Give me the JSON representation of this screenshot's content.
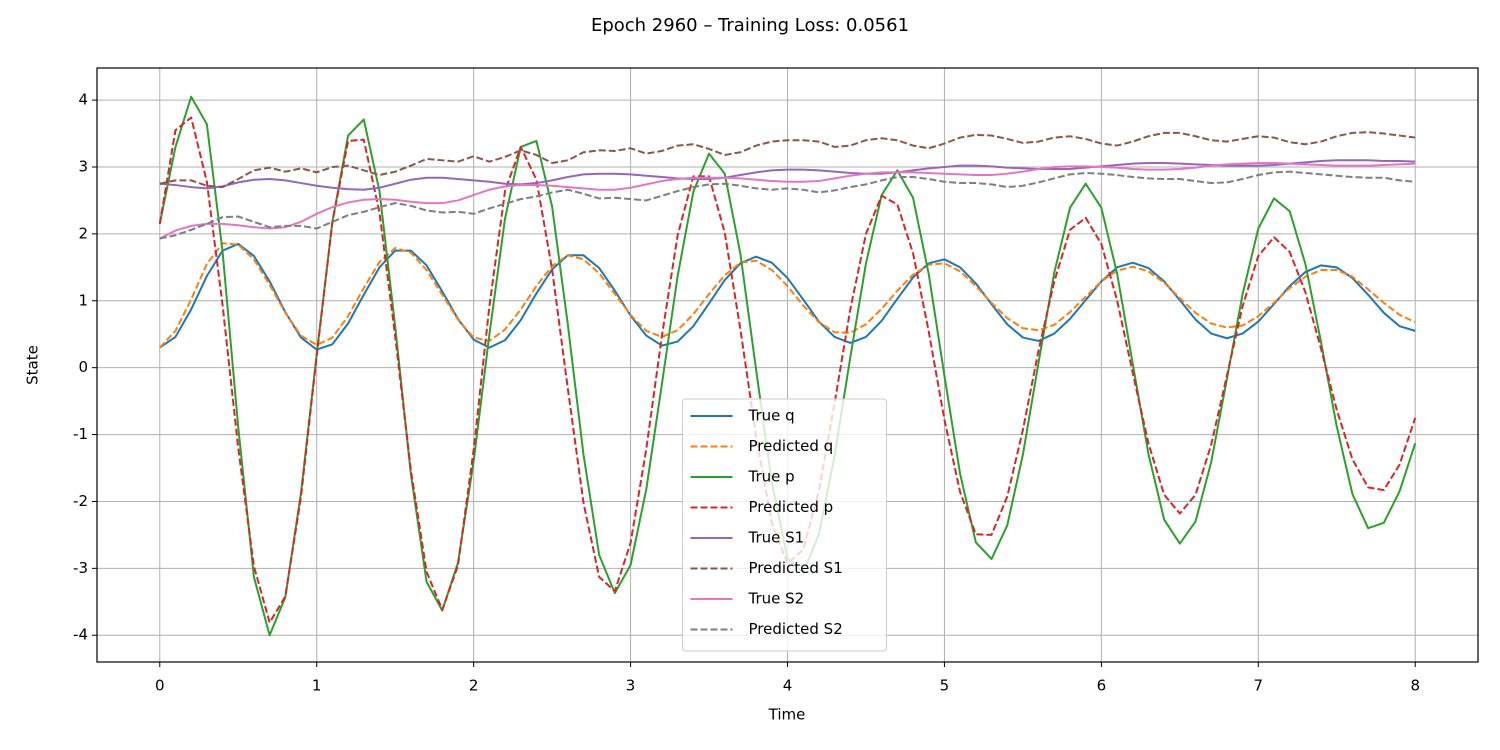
{
  "chart_data": {
    "type": "line",
    "title": "Epoch 2960 – Training Loss: 0.0561",
    "xlabel": "Time",
    "ylabel": "State",
    "xlim": [
      -0.4,
      8.4
    ],
    "ylim": [
      -4.4,
      4.48
    ],
    "xticks": [
      0,
      1,
      2,
      3,
      4,
      5,
      6,
      7,
      8
    ],
    "yticks": [
      -4,
      -3,
      -2,
      -1,
      0,
      1,
      2,
      3,
      4
    ],
    "grid": true,
    "legend_loc": "lower center",
    "x": [
      0,
      0.1,
      0.2,
      0.3,
      0.4,
      0.5,
      0.6,
      0.7,
      0.8,
      0.9,
      1,
      1.1,
      1.2,
      1.3,
      1.4,
      1.5,
      1.6,
      1.7,
      1.8,
      1.9,
      2,
      2.1,
      2.2,
      2.3,
      2.4,
      2.5,
      2.6,
      2.7,
      2.8,
      2.9,
      3,
      3.1,
      3.2,
      3.3,
      3.4,
      3.5,
      3.6,
      3.7,
      3.8,
      3.9,
      4,
      4.1,
      4.2,
      4.3,
      4.4,
      4.5,
      4.6,
      4.7,
      4.8,
      4.9,
      5,
      5.1,
      5.2,
      5.3,
      5.4,
      5.5,
      5.6,
      5.7,
      5.8,
      5.9,
      6,
      6.1,
      6.2,
      6.3,
      6.4,
      6.5,
      6.6,
      6.7,
      6.8,
      6.9,
      7,
      7.1,
      7.2,
      7.3,
      7.4,
      7.5,
      7.6,
      7.7,
      7.8,
      7.9,
      8
    ],
    "series": [
      {
        "name": "True q",
        "color": "#1f77b4",
        "linestyle": "solid",
        "values": [
          0.3,
          0.46,
          0.87,
          1.37,
          1.75,
          1.85,
          1.67,
          1.29,
          0.83,
          0.45,
          0.27,
          0.35,
          0.66,
          1.09,
          1.5,
          1.75,
          1.75,
          1.53,
          1.14,
          0.73,
          0.42,
          0.3,
          0.41,
          0.71,
          1.11,
          1.47,
          1.68,
          1.68,
          1.49,
          1.15,
          0.78,
          0.48,
          0.33,
          0.39,
          0.62,
          0.96,
          1.31,
          1.56,
          1.66,
          1.57,
          1.34,
          1.02,
          0.69,
          0.46,
          0.37,
          0.46,
          0.7,
          1.03,
          1.35,
          1.56,
          1.62,
          1.5,
          1.26,
          0.95,
          0.65,
          0.45,
          0.4,
          0.51,
          0.73,
          1.01,
          1.29,
          1.5,
          1.57,
          1.49,
          1.29,
          1.01,
          0.72,
          0.51,
          0.44,
          0.51,
          0.69,
          0.95,
          1.22,
          1.43,
          1.53,
          1.5,
          1.34,
          1.09,
          0.82,
          0.62,
          0.55
        ]
      },
      {
        "name": "Predicted q",
        "color": "#ff7f0e",
        "linestyle": "dashed",
        "values": [
          0.3,
          0.55,
          1.02,
          1.55,
          1.86,
          1.84,
          1.62,
          1.24,
          0.82,
          0.48,
          0.34,
          0.45,
          0.77,
          1.19,
          1.58,
          1.79,
          1.72,
          1.46,
          1.09,
          0.72,
          0.45,
          0.4,
          0.57,
          0.87,
          1.22,
          1.52,
          1.68,
          1.62,
          1.41,
          1.1,
          0.79,
          0.55,
          0.46,
          0.56,
          0.8,
          1.1,
          1.38,
          1.57,
          1.6,
          1.46,
          1.22,
          0.93,
          0.68,
          0.53,
          0.52,
          0.65,
          0.88,
          1.15,
          1.39,
          1.54,
          1.56,
          1.44,
          1.22,
          0.97,
          0.74,
          0.59,
          0.56,
          0.64,
          0.83,
          1.06,
          1.29,
          1.45,
          1.51,
          1.44,
          1.27,
          1.04,
          0.82,
          0.66,
          0.6,
          0.63,
          0.77,
          0.97,
          1.19,
          1.36,
          1.46,
          1.46,
          1.36,
          1.17,
          0.97,
          0.79,
          0.68
        ]
      },
      {
        "name": "True p",
        "color": "#2ca02c",
        "linestyle": "solid",
        "values": [
          2.15,
          3.3,
          4.05,
          3.64,
          1.74,
          -0.89,
          -3.13,
          -4.0,
          -3.43,
          -1.87,
          0.2,
          2.18,
          3.47,
          3.71,
          2.64,
          0.62,
          -1.59,
          -3.2,
          -3.63,
          -2.92,
          -1.4,
          0.49,
          2.23,
          3.3,
          3.39,
          2.41,
          0.65,
          -1.3,
          -2.8,
          -3.37,
          -2.95,
          -1.82,
          -0.24,
          1.37,
          2.63,
          3.2,
          2.9,
          1.7,
          -0.03,
          -1.72,
          -2.85,
          -3.07,
          -2.49,
          -1.32,
          0.15,
          1.56,
          2.58,
          2.95,
          2.54,
          1.4,
          -0.12,
          -1.59,
          -2.61,
          -2.86,
          -2.36,
          -1.3,
          0.08,
          1.42,
          2.39,
          2.75,
          2.39,
          1.41,
          0.06,
          -1.29,
          -2.27,
          -2.63,
          -2.3,
          -1.41,
          -0.17,
          1.1,
          2.08,
          2.53,
          2.34,
          1.55,
          0.38,
          -0.88,
          -1.89,
          -2.4,
          -2.32,
          -1.85,
          -1.13
        ]
      },
      {
        "name": "Predicted p",
        "color": "#d62728",
        "linestyle": "dashed",
        "values": [
          2.15,
          3.55,
          3.74,
          2.78,
          0.94,
          -1.2,
          -2.97,
          -3.81,
          -3.42,
          -1.93,
          0.18,
          2.18,
          3.39,
          3.41,
          2.32,
          0.47,
          -1.53,
          -3.05,
          -3.62,
          -2.96,
          -1.23,
          0.91,
          2.64,
          3.3,
          2.81,
          1.47,
          -0.31,
          -2.02,
          -3.13,
          -3.34,
          -2.62,
          -1.22,
          0.48,
          1.98,
          2.86,
          2.86,
          2.02,
          0.57,
          -1.03,
          -2.32,
          -2.93,
          -2.72,
          -1.84,
          -0.53,
          0.87,
          2.0,
          2.57,
          2.44,
          1.71,
          0.54,
          -0.78,
          -1.86,
          -2.49,
          -2.5,
          -1.93,
          -0.93,
          0.26,
          1.29,
          2.06,
          2.24,
          1.85,
          1.01,
          -0.08,
          -1.13,
          -1.9,
          -2.18,
          -1.9,
          -1.15,
          -0.12,
          0.92,
          1.67,
          1.95,
          1.73,
          1.13,
          0.28,
          -0.63,
          -1.37,
          -1.79,
          -1.83,
          -1.45,
          -0.75
        ]
      },
      {
        "name": "True S1",
        "color": "#9467bd",
        "linestyle": "solid",
        "values": [
          2.75,
          2.73,
          2.7,
          2.68,
          2.71,
          2.77,
          2.81,
          2.82,
          2.8,
          2.76,
          2.72,
          2.69,
          2.67,
          2.66,
          2.69,
          2.75,
          2.81,
          2.84,
          2.84,
          2.82,
          2.8,
          2.78,
          2.75,
          2.74,
          2.76,
          2.8,
          2.85,
          2.89,
          2.9,
          2.9,
          2.89,
          2.87,
          2.85,
          2.83,
          2.82,
          2.82,
          2.84,
          2.88,
          2.92,
          2.95,
          2.96,
          2.96,
          2.95,
          2.93,
          2.91,
          2.9,
          2.9,
          2.92,
          2.95,
          2.98,
          3.0,
          3.02,
          3.02,
          3.01,
          2.99,
          2.98,
          2.97,
          2.97,
          2.97,
          2.99,
          3.01,
          3.03,
          3.05,
          3.06,
          3.06,
          3.05,
          3.04,
          3.03,
          3.02,
          3.02,
          3.02,
          3.03,
          3.05,
          3.07,
          3.09,
          3.1,
          3.1,
          3.1,
          3.09,
          3.09,
          3.08
        ]
      },
      {
        "name": "Predicted S1",
        "color": "#8c564b",
        "linestyle": "dashed",
        "values": [
          2.75,
          2.8,
          2.8,
          2.72,
          2.7,
          2.82,
          2.95,
          2.99,
          2.93,
          2.98,
          2.92,
          3.0,
          3.02,
          2.95,
          2.88,
          2.93,
          3.02,
          3.12,
          3.1,
          3.08,
          3.16,
          3.08,
          3.15,
          3.25,
          3.18,
          3.06,
          3.1,
          3.22,
          3.25,
          3.24,
          3.28,
          3.2,
          3.24,
          3.32,
          3.34,
          3.27,
          3.18,
          3.22,
          3.32,
          3.38,
          3.4,
          3.4,
          3.38,
          3.3,
          3.32,
          3.4,
          3.43,
          3.4,
          3.32,
          3.28,
          3.35,
          3.44,
          3.48,
          3.47,
          3.42,
          3.36,
          3.38,
          3.44,
          3.46,
          3.42,
          3.35,
          3.32,
          3.38,
          3.46,
          3.51,
          3.51,
          3.46,
          3.4,
          3.38,
          3.42,
          3.46,
          3.44,
          3.37,
          3.34,
          3.38,
          3.46,
          3.51,
          3.52,
          3.5,
          3.47,
          3.44
        ]
      },
      {
        "name": "True S2",
        "color": "#e377c2",
        "linestyle": "solid",
        "values": [
          1.93,
          2.05,
          2.12,
          2.15,
          2.15,
          2.13,
          2.1,
          2.08,
          2.1,
          2.18,
          2.3,
          2.4,
          2.47,
          2.51,
          2.52,
          2.51,
          2.48,
          2.46,
          2.46,
          2.5,
          2.58,
          2.66,
          2.71,
          2.73,
          2.73,
          2.72,
          2.7,
          2.68,
          2.66,
          2.66,
          2.69,
          2.74,
          2.79,
          2.82,
          2.84,
          2.84,
          2.84,
          2.83,
          2.81,
          2.79,
          2.78,
          2.78,
          2.79,
          2.83,
          2.87,
          2.9,
          2.92,
          2.92,
          2.92,
          2.91,
          2.9,
          2.89,
          2.88,
          2.88,
          2.9,
          2.93,
          2.97,
          3.0,
          3.01,
          3.01,
          3.0,
          2.99,
          2.97,
          2.96,
          2.96,
          2.97,
          2.99,
          3.02,
          3.04,
          3.05,
          3.06,
          3.06,
          3.05,
          3.04,
          3.03,
          3.02,
          3.02,
          3.02,
          3.03,
          3.04,
          3.05
        ]
      },
      {
        "name": "Predicted S2",
        "color": "#7f7f7f",
        "linestyle": "dashed",
        "values": [
          1.93,
          1.98,
          2.06,
          2.15,
          2.25,
          2.26,
          2.18,
          2.1,
          2.12,
          2.12,
          2.08,
          2.18,
          2.28,
          2.33,
          2.4,
          2.46,
          2.42,
          2.35,
          2.32,
          2.33,
          2.3,
          2.38,
          2.45,
          2.52,
          2.56,
          2.62,
          2.66,
          2.6,
          2.53,
          2.54,
          2.52,
          2.5,
          2.57,
          2.64,
          2.7,
          2.74,
          2.75,
          2.72,
          2.68,
          2.66,
          2.68,
          2.66,
          2.62,
          2.65,
          2.7,
          2.74,
          2.8,
          2.85,
          2.85,
          2.82,
          2.78,
          2.76,
          2.76,
          2.74,
          2.7,
          2.72,
          2.77,
          2.83,
          2.89,
          2.91,
          2.9,
          2.88,
          2.85,
          2.83,
          2.82,
          2.82,
          2.79,
          2.76,
          2.77,
          2.82,
          2.88,
          2.92,
          2.93,
          2.91,
          2.89,
          2.87,
          2.85,
          2.84,
          2.84,
          2.8,
          2.78
        ]
      }
    ]
  }
}
